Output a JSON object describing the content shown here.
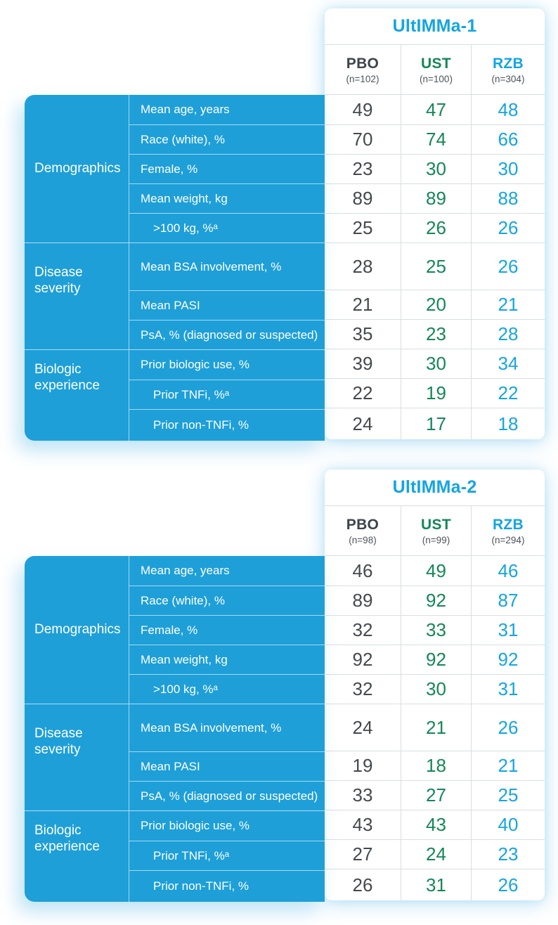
{
  "colors": {
    "panel_blue": "#1E9FD8",
    "accent_blue": "#14A5E1",
    "ust_green": "#148756",
    "pbo_dark": "#3C444C",
    "value_gray": "#45494D",
    "divider_gray": "#D9DEE3"
  },
  "chart_data": [
    {
      "type": "table",
      "title": "UltIMMa-1",
      "columns": [
        {
          "drug": "PBO",
          "n": "(n=102)"
        },
        {
          "drug": "UST",
          "n": "(n=100)"
        },
        {
          "drug": "RZB",
          "n": "(n=304)"
        }
      ],
      "groups": [
        {
          "label": "Demographics",
          "row_span": 5
        },
        {
          "label": "Disease severity",
          "row_span": 3
        },
        {
          "label": "Biologic experience",
          "row_span": 3
        }
      ],
      "rows": [
        {
          "group": "Demographics",
          "label": "Mean age, years",
          "values": [
            49,
            47,
            48
          ]
        },
        {
          "group": "Demographics",
          "label": "Race (white), %",
          "values": [
            70,
            74,
            66
          ]
        },
        {
          "group": "Demographics",
          "label": "Female, %",
          "values": [
            23,
            30,
            30
          ]
        },
        {
          "group": "Demographics",
          "label": "Mean weight, kg",
          "values": [
            89,
            89,
            88
          ]
        },
        {
          "group": "Demographics",
          "label": ">100 kg, %ᵃ",
          "values": [
            25,
            26,
            26
          ]
        },
        {
          "group": "Disease severity",
          "label": "Mean BSA involvement, %",
          "values": [
            28,
            25,
            26
          ]
        },
        {
          "group": "Disease severity",
          "label": "Mean PASI",
          "values": [
            21,
            20,
            21
          ]
        },
        {
          "group": "Disease severity",
          "label": "PsA, % (diagnosed or suspected)",
          "values": [
            35,
            23,
            28
          ]
        },
        {
          "group": "Biologic experience",
          "label": "Prior biologic use, %",
          "values": [
            39,
            30,
            34
          ]
        },
        {
          "group": "Biologic experience",
          "label": "Prior TNFi, %ᵃ",
          "values": [
            22,
            19,
            22
          ]
        },
        {
          "group": "Biologic experience",
          "label": "Prior non-TNFi, %",
          "values": [
            24,
            17,
            18
          ]
        }
      ]
    },
    {
      "type": "table",
      "title": "UltIMMa-2",
      "columns": [
        {
          "drug": "PBO",
          "n": "(n=98)"
        },
        {
          "drug": "UST",
          "n": "(n=99)"
        },
        {
          "drug": "RZB",
          "n": "(n=294)"
        }
      ],
      "groups": [
        {
          "label": "Demographics",
          "row_span": 5
        },
        {
          "label": "Disease severity",
          "row_span": 3
        },
        {
          "label": "Biologic experience",
          "row_span": 3
        }
      ],
      "rows": [
        {
          "group": "Demographics",
          "label": "Mean age, years",
          "values": [
            46,
            49,
            46
          ]
        },
        {
          "group": "Demographics",
          "label": "Race (white), %",
          "values": [
            89,
            92,
            87
          ]
        },
        {
          "group": "Demographics",
          "label": "Female, %",
          "values": [
            32,
            33,
            31
          ]
        },
        {
          "group": "Demographics",
          "label": "Mean weight, kg",
          "values": [
            92,
            92,
            92
          ]
        },
        {
          "group": "Demographics",
          "label": ">100 kg, %ᵃ",
          "values": [
            32,
            30,
            31
          ]
        },
        {
          "group": "Disease severity",
          "label": "Mean BSA involvement, %",
          "values": [
            24,
            21,
            26
          ]
        },
        {
          "group": "Disease severity",
          "label": "Mean PASI",
          "values": [
            19,
            18,
            21
          ]
        },
        {
          "group": "Disease severity",
          "label": "PsA, % (diagnosed or suspected)",
          "values": [
            33,
            27,
            25
          ]
        },
        {
          "group": "Biologic experience",
          "label": "Prior biologic use, %",
          "values": [
            43,
            43,
            40
          ]
        },
        {
          "group": "Biologic experience",
          "label": "Prior TNFi, %ᵃ",
          "values": [
            27,
            24,
            23
          ]
        },
        {
          "group": "Biologic experience",
          "label": "Prior non-TNFi, %",
          "values": [
            26,
            31,
            26
          ]
        }
      ]
    }
  ]
}
